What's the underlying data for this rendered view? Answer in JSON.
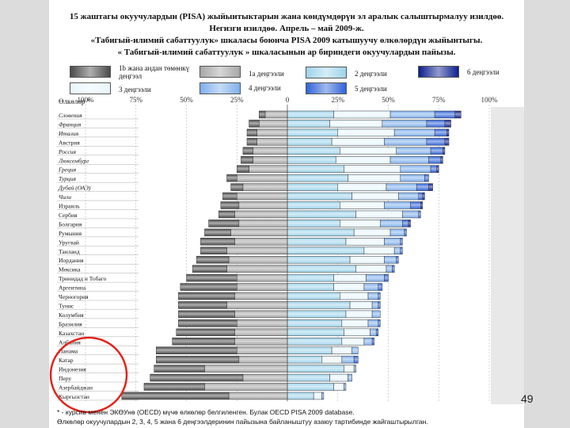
{
  "title_lines": [
    "15 жаштагы окуучулардын (PISA) жыйынтыктарын жана көндүмдөрүн эл аралык салыштырмалуу изилдөө.",
    "Негизги изилдөө. Апрель – май 2009-ж.",
    "«Табигый-илимий сабаттуулук» шкаласы боюнча PISA 2009 катышуучу өлкөлөрдүн жыйынтыгы.",
    "« Табигый-илимий сабаттуулук » шкаласынын ар бириндеги окуучулардын пайызы."
  ],
  "legend": [
    {
      "label": "1b жана андан төмөнкү деңгээл",
      "color": "#4a4a4a"
    },
    {
      "label": "1а деңгээли",
      "color": "#a6a6a6"
    },
    {
      "label": "2 деңгээли",
      "color": "#9fd4ec"
    },
    {
      "label": "3 деңгээли",
      "color": "#e8f6fc"
    },
    {
      "label": "4 деңгээли",
      "color": "#7fb0ec"
    },
    {
      "label": "5 деңгээли",
      "color": "#2f63d8"
    },
    {
      "label": "6 деңгээли",
      "color": "#0c1f8e"
    }
  ],
  "chart_data": {
    "type": "bar",
    "orientation": "horizontal",
    "stacked": "diverging",
    "ylabel": "Өлкөлөр *",
    "xlim": [
      -100,
      100
    ],
    "ticks": [
      "100%",
      "75%",
      "50%",
      "25%",
      "0",
      "25%",
      "50%",
      "75%",
      "100%"
    ],
    "categories": [
      "Словения",
      "Франция",
      "Италия",
      "Австрия",
      "Россия",
      "Люксембург",
      "Греция",
      "Турция",
      "Дубай (ОАЭ)",
      "Чили",
      "Израиль",
      "Сербия",
      "Болгария",
      "Румыния",
      "Уругвай",
      "Таиланд",
      "Иордания",
      "Мексика",
      "Тринидад и Тобаго",
      "Аргентина",
      "Черногория",
      "Тунис",
      "Колумбия",
      "Бразилия",
      "Казахстан",
      "Албания",
      "Панама",
      "Катар",
      "Индонезия",
      "Перу",
      "Азербайджан",
      "Кыргызстан"
    ],
    "series": [
      {
        "name": "1b жана андан төмөнкү деңгээл",
        "values": [
          3,
          5,
          5,
          5,
          5,
          6,
          6,
          5,
          6,
          7,
          9,
          8,
          15,
          13,
          17,
          13,
          16,
          17,
          25,
          28,
          28,
          24,
          28,
          29,
          29,
          31,
          40,
          41,
          25,
          46,
          30,
          53
        ]
      },
      {
        "name": "1а деңгээли",
        "values": [
          11,
          14,
          15,
          15,
          17,
          17,
          19,
          25,
          22,
          25,
          24,
          26,
          24,
          28,
          26,
          30,
          29,
          30,
          25,
          25,
          26,
          30,
          26,
          25,
          26,
          26,
          25,
          24,
          41,
          22,
          41,
          29
        ]
      },
      {
        "name": "2 деңгээли",
        "values": [
          23,
          21,
          25,
          22,
          26,
          24,
          28,
          30,
          25,
          32,
          26,
          34,
          26,
          33,
          29,
          38,
          31,
          34,
          23,
          23,
          26,
          31,
          29,
          27,
          28,
          27,
          22,
          17,
          28,
          21,
          23,
          13
        ]
      },
      {
        "name": "3 деңгээли",
        "values": [
          28,
          26,
          28,
          26,
          28,
          27,
          28,
          26,
          24,
          23,
          22,
          23,
          20,
          18,
          19,
          15,
          17,
          15,
          16,
          15,
          14,
          11,
          13,
          13,
          13,
          11,
          10,
          10,
          5,
          9,
          5,
          4
        ]
      },
      {
        "name": "4 деңгээли",
        "values": [
          22,
          22,
          20,
          21,
          17,
          19,
          15,
          12,
          15,
          10,
          13,
          8,
          11,
          7,
          8,
          3,
          6,
          3,
          9,
          7,
          5,
          3,
          4,
          5,
          3,
          4,
          3,
          6,
          1,
          2,
          1,
          1
        ]
      },
      {
        "name": "5 деңгээли",
        "values": [
          10,
          9,
          6,
          9,
          6,
          6,
          3,
          2,
          6,
          2,
          5,
          1,
          3,
          1,
          1,
          1,
          1,
          1,
          2,
          2,
          1,
          1,
          0,
          1,
          1,
          1,
          0,
          2,
          0,
          0,
          0,
          0
        ]
      },
      {
        "name": "6 деңгээли",
        "values": [
          3,
          3,
          1,
          2,
          1,
          1,
          1,
          0,
          2,
          1,
          1,
          0,
          1,
          0,
          0,
          0,
          0,
          0,
          0,
          0,
          0,
          0,
          0,
          0,
          0,
          0,
          0,
          0,
          0,
          0,
          0,
          0
        ]
      }
    ]
  },
  "page_number": "49",
  "footnote_lines": [
    "* - курсив менен ЭКӨУнө (OECD) мүчө өлкөлөр белгиленген. Булак OECD PISA 2009 database.",
    "Өлкөлөр окуучулардын 2, 3, 4, 5 жана 6 деңгээлдеринин пайызына байланыштуу азаюу тартибинде жайгаштырылган."
  ],
  "highlight_color": "#e2231a"
}
